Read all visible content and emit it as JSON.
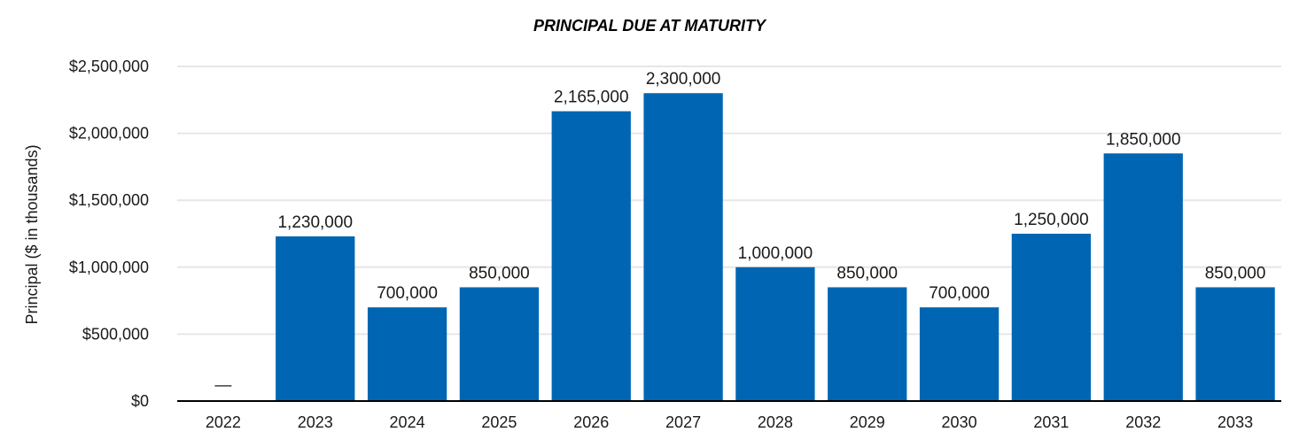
{
  "chart_data": {
    "type": "bar",
    "title": "PRINCIPAL DUE AT MATURITY",
    "xlabel": "",
    "ylabel": "Principal ($ in thousands)",
    "categories": [
      "2022",
      "2023",
      "2024",
      "2025",
      "2026",
      "2027",
      "2028",
      "2029",
      "2030",
      "2031",
      "2032",
      "2033"
    ],
    "values": [
      0,
      1230000,
      700000,
      850000,
      2165000,
      2300000,
      1000000,
      850000,
      700000,
      1250000,
      1850000,
      850000
    ],
    "data_labels": [
      "—",
      "1,230,000",
      "700,000",
      "850,000",
      "2,165,000",
      "2,300,000",
      "1,000,000",
      "850,000",
      "700,000",
      "1,250,000",
      "1,850,000",
      "850,000"
    ],
    "ylim": [
      0,
      2500000
    ],
    "y_ticks": [
      0,
      500000,
      1000000,
      1500000,
      2000000,
      2500000
    ],
    "y_tick_labels": [
      "$0",
      "$500,000",
      "$1,000,000",
      "$1,500,000",
      "$2,000,000",
      "$2,500,000"
    ],
    "grid": true,
    "legend": "none",
    "bar_color": "#0066b3",
    "grid_color": "#e6e6e6"
  }
}
